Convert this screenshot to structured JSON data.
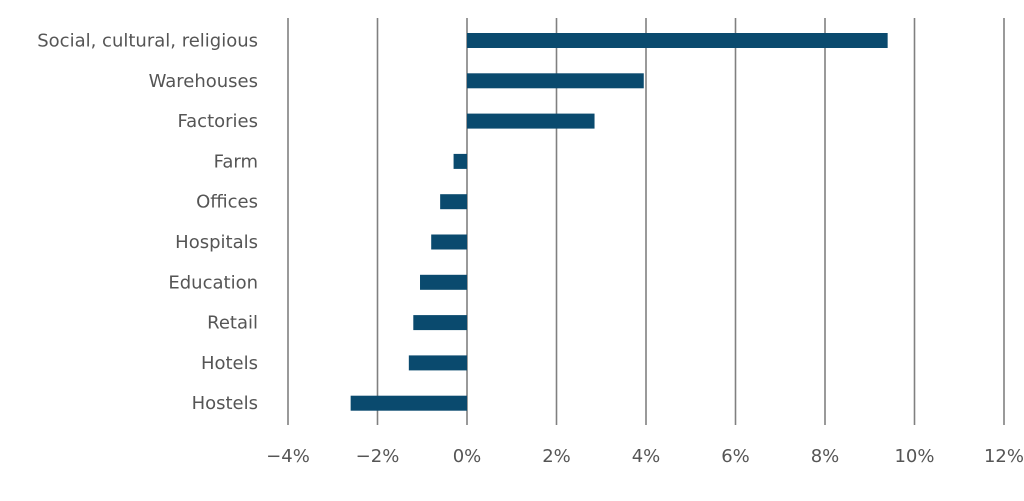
{
  "chart_data": {
    "type": "bar",
    "orientation": "horizontal",
    "title": "",
    "xlabel": "",
    "ylabel": "",
    "categories": [
      "Social, cultural, religious",
      "Warehouses",
      "Factories",
      "Farm",
      "Offices",
      "Hospitals",
      "Education",
      "Retail",
      "Hotels",
      "Hostels"
    ],
    "values": [
      9.4,
      3.95,
      2.85,
      -0.3,
      -0.6,
      -0.8,
      -1.05,
      -1.2,
      -1.3,
      -2.6
    ],
    "xlim": [
      -4,
      12
    ],
    "x_ticks": [
      -4,
      -2,
      0,
      2,
      4,
      6,
      8,
      10,
      12
    ],
    "x_tick_labels": [
      "−4%",
      "−2%",
      "0%",
      "2%",
      "4%",
      "6%",
      "8%",
      "10%",
      "12%"
    ],
    "grid": "vertical",
    "legend": "none",
    "colors": {
      "bar": "#0a4a6e",
      "grid": "#808080",
      "text": "#555555"
    }
  }
}
